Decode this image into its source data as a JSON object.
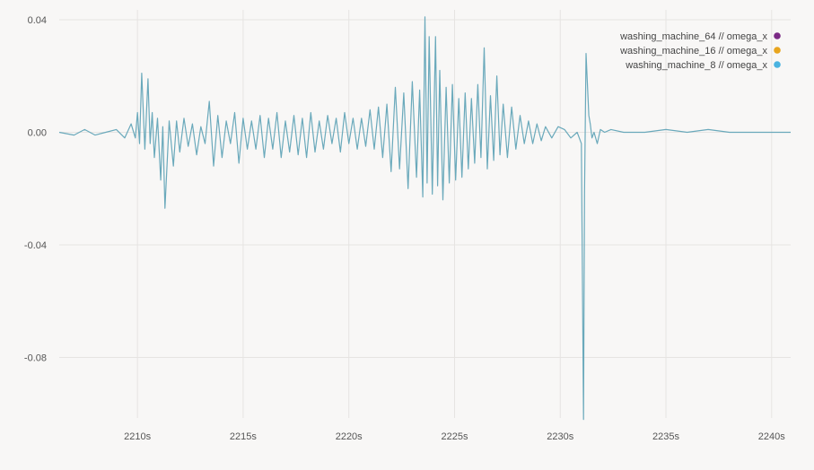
{
  "chart_data": {
    "type": "line",
    "x_unit": "s",
    "xlim": [
      2206.3,
      2240.9
    ],
    "ylim": [
      -0.1015,
      0.0435
    ],
    "x_ticks": [
      2210,
      2215,
      2220,
      2225,
      2230,
      2235,
      2240
    ],
    "x_tick_labels": [
      "2210s",
      "2215s",
      "2220s",
      "2225s",
      "2230s",
      "2235s",
      "2240s"
    ],
    "y_ticks": [
      0.04,
      0.0,
      -0.04,
      -0.08
    ],
    "y_tick_labels": [
      "0.04",
      "0.00",
      "-0.04",
      "-0.08"
    ],
    "grid": true,
    "legend_position": "top-right",
    "series": [
      {
        "name": "washing_machine_64 // omega_x",
        "color": "#7b2a85",
        "x": [],
        "y": []
      },
      {
        "name": "washing_machine_16 // omega_x",
        "color": "#e8a51e",
        "x": [],
        "y": []
      },
      {
        "name": "washing_machine_8 // omega_x",
        "color": "#4ab3e0",
        "line_color": "#6aa9bb",
        "x": [
          2206.3,
          2207.0,
          2207.5,
          2208.0,
          2208.5,
          2209.0,
          2209.4,
          2209.7,
          2209.9,
          2210.0,
          2210.1,
          2210.2,
          2210.35,
          2210.5,
          2210.6,
          2210.7,
          2210.8,
          2210.95,
          2211.1,
          2211.2,
          2211.3,
          2211.5,
          2211.7,
          2211.85,
          2212.0,
          2212.2,
          2212.4,
          2212.6,
          2212.8,
          2213.0,
          2213.2,
          2213.4,
          2213.6,
          2213.8,
          2214.0,
          2214.2,
          2214.4,
          2214.6,
          2214.8,
          2215.0,
          2215.2,
          2215.4,
          2215.6,
          2215.8,
          2216.0,
          2216.2,
          2216.4,
          2216.6,
          2216.8,
          2217.0,
          2217.2,
          2217.4,
          2217.6,
          2217.8,
          2218.0,
          2218.2,
          2218.4,
          2218.6,
          2218.8,
          2219.0,
          2219.2,
          2219.4,
          2219.6,
          2219.8,
          2220.0,
          2220.2,
          2220.4,
          2220.6,
          2220.8,
          2221.0,
          2221.2,
          2221.4,
          2221.6,
          2221.8,
          2222.0,
          2222.2,
          2222.4,
          2222.6,
          2222.8,
          2223.0,
          2223.2,
          2223.35,
          2223.5,
          2223.6,
          2223.7,
          2223.8,
          2223.95,
          2224.1,
          2224.2,
          2224.3,
          2224.45,
          2224.6,
          2224.75,
          2224.9,
          2225.05,
          2225.2,
          2225.35,
          2225.5,
          2225.65,
          2225.8,
          2225.95,
          2226.1,
          2226.25,
          2226.4,
          2226.55,
          2226.7,
          2226.85,
          2227.0,
          2227.15,
          2227.3,
          2227.5,
          2227.7,
          2227.9,
          2228.1,
          2228.3,
          2228.5,
          2228.7,
          2228.9,
          2229.1,
          2229.3,
          2229.6,
          2229.9,
          2230.2,
          2230.5,
          2230.8,
          2231.0,
          2231.1,
          2231.15,
          2231.22,
          2231.28,
          2231.35,
          2231.42,
          2231.5,
          2231.6,
          2231.75,
          2231.9,
          2232.1,
          2232.4,
          2233.0,
          2234.0,
          2235.0,
          2236.0,
          2237.0,
          2238.0,
          2239.0,
          2240.0,
          2240.9
        ],
        "y": [
          0.0,
          -0.001,
          0.001,
          -0.001,
          0.0,
          0.001,
          -0.002,
          0.003,
          -0.002,
          0.007,
          -0.004,
          0.021,
          -0.006,
          0.019,
          -0.004,
          0.007,
          -0.009,
          0.005,
          -0.017,
          0.002,
          -0.027,
          0.004,
          -0.012,
          0.004,
          -0.007,
          0.005,
          -0.005,
          0.003,
          -0.008,
          0.002,
          -0.004,
          0.011,
          -0.012,
          0.006,
          -0.009,
          0.004,
          -0.004,
          0.007,
          -0.011,
          0.005,
          -0.006,
          0.004,
          -0.006,
          0.006,
          -0.009,
          0.005,
          -0.006,
          0.007,
          -0.009,
          0.004,
          -0.007,
          0.006,
          -0.008,
          0.005,
          -0.009,
          0.007,
          -0.007,
          0.004,
          -0.006,
          0.006,
          -0.004,
          0.005,
          -0.007,
          0.007,
          -0.004,
          0.005,
          -0.006,
          0.005,
          -0.005,
          0.008,
          -0.006,
          0.009,
          -0.009,
          0.01,
          -0.014,
          0.016,
          -0.013,
          0.014,
          -0.02,
          0.018,
          -0.016,
          0.015,
          -0.023,
          0.041,
          -0.018,
          0.034,
          -0.022,
          0.034,
          -0.019,
          0.022,
          -0.024,
          0.016,
          -0.018,
          0.017,
          -0.017,
          0.012,
          -0.016,
          0.014,
          -0.013,
          0.012,
          -0.011,
          0.017,
          -0.009,
          0.03,
          -0.013,
          0.013,
          -0.01,
          0.02,
          -0.008,
          0.01,
          -0.009,
          0.009,
          -0.006,
          0.006,
          -0.004,
          0.004,
          -0.004,
          0.003,
          -0.003,
          0.002,
          -0.002,
          0.002,
          0.001,
          -0.002,
          0.0,
          -0.004,
          -0.102,
          -0.022,
          0.028,
          0.018,
          0.006,
          0.003,
          -0.002,
          0.0,
          -0.004,
          0.001,
          0.0,
          0.001,
          0.0,
          0.0,
          0.001,
          0.0,
          0.001,
          0.0,
          0.0,
          0.0,
          0.0
        ]
      }
    ]
  }
}
